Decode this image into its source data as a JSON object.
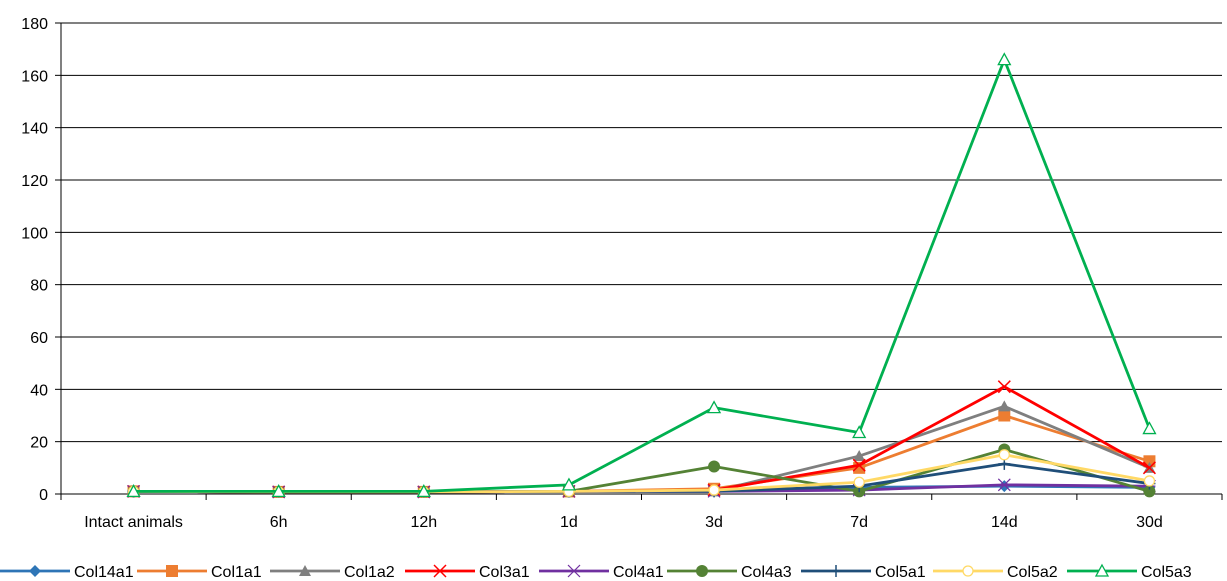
{
  "chart_data": {
    "type": "line",
    "categories": [
      "Intact animals",
      "6h",
      "12h",
      "1d",
      "3d",
      "7d",
      "14d",
      "30d"
    ],
    "ylim": [
      0,
      180
    ],
    "yticks": [
      0,
      20,
      40,
      60,
      80,
      100,
      120,
      140,
      160,
      180
    ],
    "grid": true,
    "legend_position": "bottom",
    "series": [
      {
        "name": "Col14a1",
        "color": "#2E75B6",
        "marker": "diamond",
        "values": [
          1,
          0.8,
          0.8,
          1.0,
          1.5,
          2.5,
          3.0,
          2.5
        ]
      },
      {
        "name": "Col1a1",
        "color": "#ED7D31",
        "marker": "square",
        "values": [
          1,
          0.8,
          0.8,
          1.0,
          2.0,
          10,
          30,
          12.5
        ]
      },
      {
        "name": "Col1a2",
        "color": "#7F7F7F",
        "marker": "triangle",
        "values": [
          1,
          0.8,
          0.8,
          1.0,
          1.0,
          14.5,
          33.5,
          10
        ]
      },
      {
        "name": "Col3a1",
        "color": "#FF0000",
        "marker": "x",
        "values": [
          1,
          0.8,
          0.8,
          1.0,
          1.5,
          11,
          41,
          10
        ]
      },
      {
        "name": "Col4a1",
        "color": "#7030A0",
        "marker": "star",
        "values": [
          1,
          0.8,
          0.8,
          1.0,
          1.0,
          1.5,
          3.5,
          3.0
        ]
      },
      {
        "name": "Col4a3",
        "color": "#548235",
        "marker": "circle",
        "values": [
          1,
          0.8,
          0.8,
          1.0,
          10.5,
          1.0,
          17,
          1.0
        ]
      },
      {
        "name": "Col5a1",
        "color": "#1F4E79",
        "marker": "plus",
        "values": [
          1,
          0.8,
          0.8,
          1.0,
          1.0,
          3.0,
          11.5,
          4.0
        ]
      },
      {
        "name": "Col5a2",
        "color": "#FFD966",
        "marker": "ocircle",
        "values": [
          1,
          0.8,
          0.8,
          1.0,
          1.5,
          4.5,
          15,
          5.0
        ]
      },
      {
        "name": "Col5a3",
        "color": "#00B050",
        "marker": "otriangle",
        "values": [
          1,
          1,
          1,
          3.5,
          33,
          23.5,
          166,
          25
        ]
      }
    ]
  }
}
